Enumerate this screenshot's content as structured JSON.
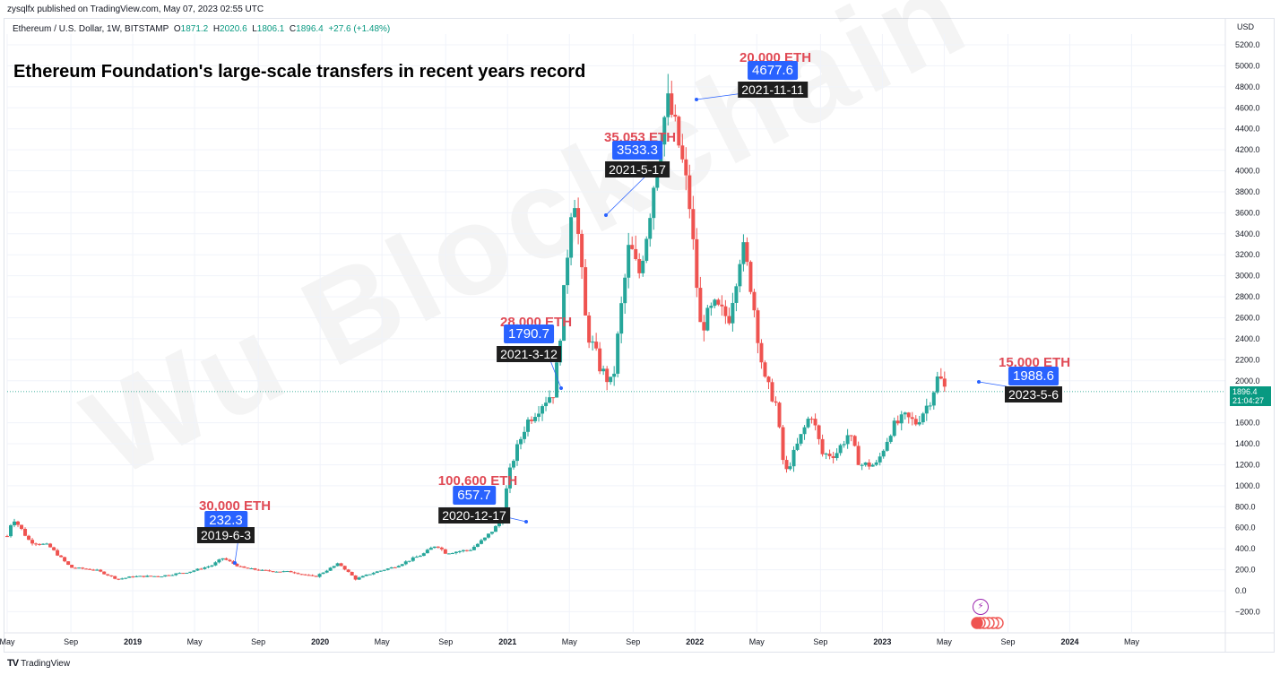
{
  "header": {
    "publisher": "zysqlfx published on TradingView.com, May 07, 2023 02:55 UTC",
    "symbol": "Ethereum / U.S. Dollar, 1W, BITSTAMP",
    "ohlc": {
      "open_label": "O",
      "open": "1871.2",
      "high_label": "H",
      "high": "2020.6",
      "low_label": "L",
      "low": "1806.1",
      "close_label": "C",
      "close": "1896.4",
      "change": "+27.6 (+1.48%)"
    }
  },
  "title": "Ethereum Foundation's large-scale transfers in recent years record",
  "watermark": "Wu Blockchain",
  "price_axis": {
    "currency": "USD",
    "last_price": "1896.4",
    "countdown": "21:04:27"
  },
  "footer": {
    "brand": "TradingView",
    "logo": "TV"
  },
  "colors": {
    "up": "#26a69a",
    "down": "#ef5350",
    "accent": "#2962ff",
    "amount": "#e04a55",
    "last": "#089981"
  },
  "annotations": [
    {
      "amount": "30,000 ETH",
      "price": "232.3",
      "date": "2019-6-3",
      "t": 2019.42,
      "p": 232.3
    },
    {
      "amount": "100,600 ETH",
      "price": "657.7",
      "date": "2020-12-17",
      "t": 2020.96,
      "p": 657.7
    },
    {
      "amount": "28,000 ETH",
      "price": "1790.7",
      "date": "2021-3-12",
      "t": 2021.19,
      "p": 1790.7
    },
    {
      "amount": "35,053 ETH",
      "price": "3533.3",
      "date": "2021-5-17",
      "t": 2021.37,
      "p": 3533.3
    },
    {
      "amount": "20,000 ETH",
      "price": "4677.6",
      "date": "2021-11-11",
      "t": 2021.86,
      "p": 4677.6
    },
    {
      "amount": "15,000 ETH",
      "price": "1988.6",
      "date": "2023-5-6",
      "t": 2023.34,
      "p": 1988.6
    }
  ],
  "chart_data": {
    "type": "candlestick",
    "title": "Ethereum Foundation's large-scale transfers in recent years record",
    "xlabel": "",
    "ylabel": "USD",
    "ylim": [
      -300,
      5300
    ],
    "xlim": [
      2018.33,
      2024.83
    ],
    "y_ticks": [
      "5200.0",
      "5000.0",
      "4800.0",
      "4600.0",
      "4400.0",
      "4200.0",
      "4000.0",
      "3800.0",
      "3600.0",
      "3400.0",
      "3200.0",
      "3000.0",
      "2800.0",
      "2600.0",
      "2400.0",
      "2200.0",
      "2000.0",
      "1600.0",
      "1400.0",
      "1200.0",
      "1000.0",
      "800.0",
      "600.0",
      "400.0",
      "200.0",
      "0.0",
      "−200.0"
    ],
    "y_tick_values": [
      5200,
      5000,
      4800,
      4600,
      4400,
      4200,
      4000,
      3800,
      3600,
      3400,
      3200,
      3000,
      2800,
      2600,
      2400,
      2200,
      2000,
      1600,
      1400,
      1200,
      1000,
      800,
      600,
      400,
      200,
      0,
      -200
    ],
    "x_ticks": [
      "May",
      "Sep",
      "2019",
      "May",
      "Sep",
      "2020",
      "May",
      "Sep",
      "2021",
      "May",
      "Sep",
      "2022",
      "May",
      "Sep",
      "2023",
      "May",
      "Sep",
      "2024",
      "May"
    ],
    "x_tick_values": [
      2018.33,
      2018.67,
      2019.0,
      2019.33,
      2019.67,
      2020.0,
      2020.33,
      2020.67,
      2021.0,
      2021.33,
      2021.67,
      2022.0,
      2022.33,
      2022.67,
      2023.0,
      2023.33,
      2023.67,
      2024.0,
      2024.33
    ],
    "price_path": [
      {
        "t": 2018.33,
        "p": 520
      },
      {
        "t": 2018.36,
        "p": 700
      },
      {
        "t": 2018.4,
        "p": 600
      },
      {
        "t": 2018.45,
        "p": 470
      },
      {
        "t": 2018.55,
        "p": 430
      },
      {
        "t": 2018.67,
        "p": 220
      },
      {
        "t": 2018.8,
        "p": 200
      },
      {
        "t": 2018.92,
        "p": 110
      },
      {
        "t": 2019.0,
        "p": 135
      },
      {
        "t": 2019.15,
        "p": 140
      },
      {
        "t": 2019.3,
        "p": 180
      },
      {
        "t": 2019.42,
        "p": 240
      },
      {
        "t": 2019.48,
        "p": 310
      },
      {
        "t": 2019.58,
        "p": 220
      },
      {
        "t": 2019.7,
        "p": 190
      },
      {
        "t": 2019.85,
        "p": 180
      },
      {
        "t": 2019.97,
        "p": 130
      },
      {
        "t": 2020.1,
        "p": 260
      },
      {
        "t": 2020.19,
        "p": 110
      },
      {
        "t": 2020.28,
        "p": 170
      },
      {
        "t": 2020.4,
        "p": 230
      },
      {
        "t": 2020.55,
        "p": 350
      },
      {
        "t": 2020.62,
        "p": 440
      },
      {
        "t": 2020.67,
        "p": 360
      },
      {
        "t": 2020.8,
        "p": 390
      },
      {
        "t": 2020.88,
        "p": 500
      },
      {
        "t": 2020.96,
        "p": 650
      },
      {
        "t": 2021.02,
        "p": 1200
      },
      {
        "t": 2021.1,
        "p": 1600
      },
      {
        "t": 2021.19,
        "p": 1800
      },
      {
        "t": 2021.25,
        "p": 1900
      },
      {
        "t": 2021.3,
        "p": 2800
      },
      {
        "t": 2021.35,
        "p": 3900
      },
      {
        "t": 2021.37,
        "p": 3533
      },
      {
        "t": 2021.42,
        "p": 2500
      },
      {
        "t": 2021.5,
        "p": 2100
      },
      {
        "t": 2021.56,
        "p": 1950
      },
      {
        "t": 2021.6,
        "p": 2600
      },
      {
        "t": 2021.65,
        "p": 3300
      },
      {
        "t": 2021.7,
        "p": 3000
      },
      {
        "t": 2021.75,
        "p": 3500
      },
      {
        "t": 2021.82,
        "p": 4400
      },
      {
        "t": 2021.86,
        "p": 4650
      },
      {
        "t": 2021.92,
        "p": 4200
      },
      {
        "t": 2021.97,
        "p": 3700
      },
      {
        "t": 2022.03,
        "p": 2500
      },
      {
        "t": 2022.1,
        "p": 2700
      },
      {
        "t": 2022.18,
        "p": 2600
      },
      {
        "t": 2022.25,
        "p": 3300
      },
      {
        "t": 2022.3,
        "p": 2900
      },
      {
        "t": 2022.37,
        "p": 2000
      },
      {
        "t": 2022.43,
        "p": 1800
      },
      {
        "t": 2022.48,
        "p": 1100
      },
      {
        "t": 2022.55,
        "p": 1400
      },
      {
        "t": 2022.62,
        "p": 1700
      },
      {
        "t": 2022.68,
        "p": 1300
      },
      {
        "t": 2022.75,
        "p": 1300
      },
      {
        "t": 2022.82,
        "p": 1500
      },
      {
        "t": 2022.88,
        "p": 1200
      },
      {
        "t": 2022.97,
        "p": 1200
      },
      {
        "t": 2023.05,
        "p": 1550
      },
      {
        "t": 2023.12,
        "p": 1650
      },
      {
        "t": 2023.18,
        "p": 1600
      },
      {
        "t": 2023.25,
        "p": 1800
      },
      {
        "t": 2023.3,
        "p": 2050
      },
      {
        "t": 2023.34,
        "p": 1896
      }
    ]
  }
}
